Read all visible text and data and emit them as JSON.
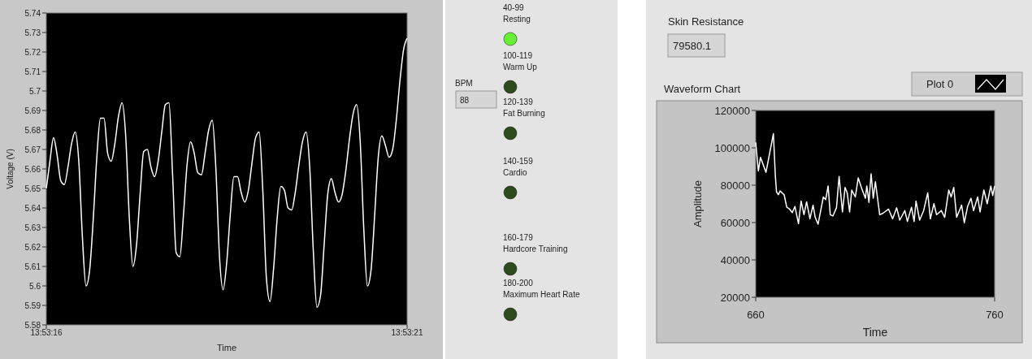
{
  "chart_data": [
    {
      "type": "line",
      "xlabel": "Time",
      "ylabel": "Voltage (V)",
      "categories": [
        "13:53:16",
        null,
        null,
        null,
        null,
        null,
        null,
        null,
        null,
        null,
        null,
        null,
        null,
        null,
        null,
        null,
        null,
        null,
        null,
        null,
        null,
        null,
        null,
        null,
        null,
        null,
        null,
        null,
        null,
        null,
        null,
        null,
        null,
        null,
        null,
        null,
        null,
        null,
        null,
        null,
        null,
        null,
        null,
        null,
        null,
        null,
        null,
        null,
        null,
        null,
        null,
        null,
        null,
        null,
        null,
        null,
        null,
        null,
        null,
        null,
        null,
        null,
        null,
        null,
        null,
        null,
        null,
        null,
        null,
        null,
        null,
        null,
        null,
        null,
        null,
        null,
        null,
        null,
        null,
        null,
        null,
        null,
        null,
        null,
        null,
        null,
        null,
        null,
        null,
        null,
        null,
        null,
        null,
        null,
        null,
        null,
        null,
        null,
        null,
        null,
        "13:53:21"
      ],
      "ylim": [
        5.58,
        5.74
      ],
      "yticks": [
        5.58,
        5.59,
        5.6,
        5.61,
        5.62,
        5.63,
        5.64,
        5.65,
        5.66,
        5.67,
        5.68,
        5.69,
        5.7,
        5.71,
        5.72,
        5.73,
        5.74
      ],
      "series": [
        {
          "color": "#ffffff",
          "values": [
            5.65,
            5.664,
            5.676,
            5.667,
            5.654,
            5.652,
            5.661,
            5.673,
            5.679,
            5.664,
            5.625,
            5.6,
            5.608,
            5.634,
            5.666,
            5.686,
            5.686,
            5.668,
            5.664,
            5.673,
            5.687,
            5.694,
            5.677,
            5.635,
            5.61,
            5.621,
            5.647,
            5.669,
            5.67,
            5.661,
            5.656,
            5.664,
            5.679,
            5.693,
            5.694,
            5.657,
            5.617,
            5.615,
            5.636,
            5.662,
            5.674,
            5.668,
            5.658,
            5.657,
            5.668,
            5.68,
            5.685,
            5.66,
            5.615,
            5.598,
            5.612,
            5.637,
            5.656,
            5.656,
            5.648,
            5.643,
            5.649,
            5.663,
            5.676,
            5.679,
            5.649,
            5.604,
            5.592,
            5.609,
            5.635,
            5.651,
            5.649,
            5.64,
            5.639,
            5.648,
            5.662,
            5.674,
            5.679,
            5.661,
            5.618,
            5.589,
            5.595,
            5.621,
            5.647,
            5.655,
            5.648,
            5.643,
            5.647,
            5.659,
            5.675,
            5.688,
            5.693,
            5.674,
            5.629,
            5.6,
            5.608,
            5.636,
            5.666,
            5.677,
            5.672,
            5.666,
            5.67,
            5.685,
            5.705,
            5.721,
            5.727
          ]
        }
      ]
    },
    {
      "type": "other",
      "annotations": [
        "BPM",
        "88"
      ],
      "categories": [
        "40-99\nResting",
        "100-119\nWarm Up",
        "120-139\nFat Burning",
        "140-159\nCardio",
        "160-179\nHardcore Training",
        "180-200\nMaximum Heart Rate"
      ]
    },
    {
      "type": "other",
      "title": "Skin Resistance",
      "annotations": [
        "79580.1"
      ]
    },
    {
      "type": "line",
      "title": "Waveform Chart",
      "xlabel": "Time",
      "ylabel": "Amplitude",
      "xlim": [
        660,
        760
      ],
      "xticks": [
        660,
        760
      ],
      "ylim": [
        20000,
        120000
      ],
      "yticks": [
        20000,
        40000,
        60000,
        80000,
        100000,
        120000
      ],
      "legend": "top right",
      "series": [
        {
          "name": "Plot 0",
          "color": "#ffffff",
          "x": [
            660,
            661.1,
            662,
            664.3,
            667.4,
            668.2,
            668.7,
            669.5,
            670.2,
            671.9,
            673,
            674.2,
            675.3,
            676.4,
            677.9,
            679,
            680.2,
            681.3,
            682.7,
            684,
            684.9,
            686.1,
            688.3,
            689.3,
            690.3,
            691.2,
            692.3,
            693.8,
            694.9,
            696.3,
            697.4,
            698.3,
            699.3,
            700.2,
            701.7,
            702.9,
            704.4,
            705.9,
            706.5,
            707.4,
            708.3,
            709.2,
            710.1,
            711.9,
            713.3,
            715.6,
            717.3,
            719,
            720.3,
            722.4,
            723.5,
            725.2,
            726.3,
            727.1,
            728.6,
            730.3,
            732,
            733.1,
            734.6,
            735.7,
            737.7,
            739.1,
            740.8,
            741.8,
            742.9,
            744.1,
            746.2,
            747.3,
            748.7,
            750.1,
            751.2,
            752.9,
            753.9,
            755.5,
            756.9,
            758.4,
            759.2,
            760
          ],
          "values": [
            102900,
            87600,
            94900,
            86900,
            107600,
            85400,
            76400,
            74900,
            76900,
            74900,
            68200,
            67200,
            65300,
            68600,
            59400,
            71500,
            64200,
            71100,
            62000,
            69300,
            62800,
            59100,
            73700,
            72300,
            79600,
            64200,
            63500,
            67900,
            84700,
            65700,
            78800,
            75900,
            65700,
            77400,
            73700,
            83900,
            78100,
            73000,
            79600,
            70800,
            86100,
            73000,
            81800,
            64200,
            65000,
            67200,
            62000,
            67900,
            61300,
            66400,
            60600,
            68200,
            60600,
            71500,
            61300,
            66400,
            75900,
            62000,
            70100,
            64200,
            66400,
            62800,
            77400,
            73700,
            78800,
            62800,
            69300,
            59900,
            68600,
            73000,
            66400,
            73700,
            65700,
            77400,
            70100,
            79600,
            74500,
            79600
          ]
        }
      ]
    }
  ]
}
